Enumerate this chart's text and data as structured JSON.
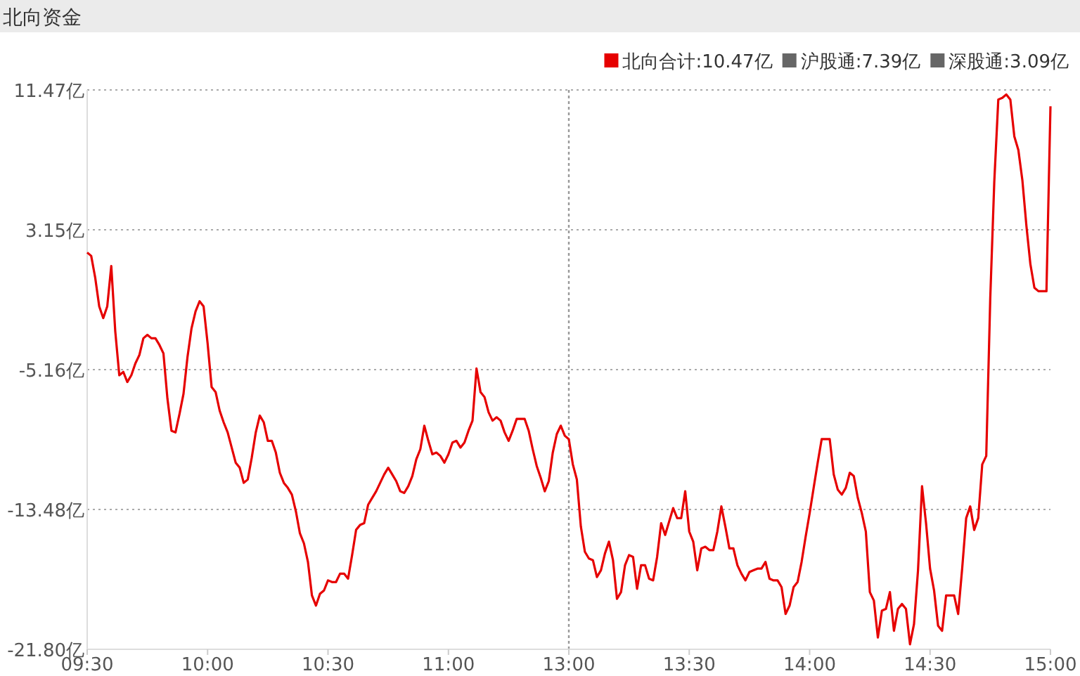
{
  "chart_data": {
    "type": "line",
    "title": "北向资金",
    "categories": [
      "09:30",
      null,
      null,
      null,
      null,
      null,
      null,
      null,
      null,
      null,
      null,
      null,
      null,
      null,
      null,
      null,
      null,
      null,
      null,
      null,
      null,
      null,
      null,
      null,
      null,
      null,
      null,
      null,
      null,
      null,
      "10:00",
      null,
      null,
      null,
      null,
      null,
      null,
      null,
      null,
      null,
      null,
      null,
      null,
      null,
      null,
      null,
      null,
      null,
      null,
      null,
      null,
      null,
      null,
      null,
      null,
      null,
      null,
      null,
      null,
      null,
      "10:30",
      null,
      null,
      null,
      null,
      null,
      null,
      null,
      null,
      null,
      null,
      null,
      null,
      null,
      null,
      null,
      null,
      null,
      null,
      null,
      null,
      null,
      null,
      null,
      null,
      null,
      null,
      null,
      null,
      null,
      "11:00",
      null,
      null,
      null,
      null,
      null,
      null,
      null,
      null,
      null,
      null,
      null,
      null,
      null,
      null,
      null,
      null,
      null,
      null,
      null,
      null,
      null,
      null,
      null,
      null,
      null,
      null,
      null,
      null,
      null,
      "13:00",
      null,
      null,
      null,
      null,
      null,
      null,
      null,
      null,
      null,
      null,
      null,
      null,
      null,
      null,
      null,
      null,
      null,
      null,
      null,
      null,
      null,
      null,
      null,
      null,
      null,
      null,
      null,
      null,
      null,
      "13:30",
      null,
      null,
      null,
      null,
      null,
      null,
      null,
      null,
      null,
      null,
      null,
      null,
      null,
      null,
      null,
      null,
      null,
      null,
      null,
      null,
      null,
      null,
      null,
      null,
      null,
      null,
      null,
      null,
      null,
      "14:00",
      null,
      null,
      null,
      null,
      null,
      null,
      null,
      null,
      null,
      null,
      null,
      null,
      null,
      null,
      null,
      null,
      null,
      null,
      null,
      null,
      null,
      null,
      null,
      null,
      null,
      null,
      null,
      null,
      null,
      "14:30",
      null,
      null,
      null,
      null,
      null,
      null,
      null,
      null,
      null,
      null,
      null,
      null,
      null,
      null,
      null,
      null,
      null,
      null,
      null,
      null,
      null,
      null,
      null,
      null,
      null,
      null,
      null,
      null,
      null,
      "15:00"
    ],
    "ylim": [
      -21.8,
      11.47
    ],
    "yticks": [
      {
        "value": 11.47,
        "label": "11.47亿"
      },
      {
        "value": 3.15,
        "label": "3.15亿"
      },
      {
        "value": -5.16,
        "label": "-5.16亿"
      },
      {
        "value": -13.48,
        "label": "-13.48亿"
      },
      {
        "value": -21.8,
        "label": "-21.80亿"
      }
    ],
    "grid": "y",
    "legend": "top right",
    "ref_lines": [
      {
        "axis": "x",
        "value": "13:00",
        "line_style": "dotted"
      }
    ],
    "series": [
      {
        "name": "北向合计:10.47亿",
        "color": "#e60000",
        "values": [
          1.8,
          1.6,
          0.3,
          -1.4,
          -2.1,
          -1.4,
          1.0,
          -2.9,
          -5.5,
          -5.3,
          -5.9,
          -5.5,
          -4.8,
          -4.3,
          -3.3,
          -3.1,
          -3.3,
          -3.3,
          -3.7,
          -4.2,
          -6.9,
          -8.8,
          -8.9,
          -7.8,
          -6.6,
          -4.4,
          -2.7,
          -1.7,
          -1.1,
          -1.4,
          -3.6,
          -6.2,
          -6.5,
          -7.6,
          -8.3,
          -8.9,
          -9.8,
          -10.7,
          -11.0,
          -11.9,
          -11.7,
          -10.4,
          -8.9,
          -7.9,
          -8.3,
          -9.4,
          -9.4,
          -10.1,
          -11.3,
          -11.9,
          -12.2,
          -12.6,
          -13.6,
          -14.9,
          -15.5,
          -16.6,
          -18.6,
          -19.2,
          -18.5,
          -18.3,
          -17.7,
          -17.8,
          -17.8,
          -17.3,
          -17.3,
          -17.6,
          -16.2,
          -14.7,
          -14.4,
          -14.3,
          -13.2,
          -12.8,
          -12.4,
          -11.9,
          -11.4,
          -11.0,
          -11.4,
          -11.8,
          -12.4,
          -12.5,
          -12.1,
          -11.5,
          -10.5,
          -9.9,
          -8.5,
          -9.4,
          -10.2,
          -10.1,
          -10.3,
          -10.7,
          -10.2,
          -9.5,
          -9.4,
          -9.8,
          -9.5,
          -8.8,
          -8.2,
          -5.1,
          -6.5,
          -6.8,
          -7.7,
          -8.2,
          -8.0,
          -8.2,
          -8.9,
          -9.4,
          -8.8,
          -8.1,
          -8.1,
          -8.1,
          -8.8,
          -9.9,
          -10.9,
          -11.6,
          -12.4,
          -11.8,
          -10.1,
          -9.0,
          -8.5,
          -9.1,
          -9.3,
          -10.8,
          -11.7,
          -14.5,
          -16.0,
          -16.4,
          -16.5,
          -17.5,
          -17.1,
          -16.1,
          -15.4,
          -16.5,
          -18.8,
          -18.4,
          -16.8,
          -16.2,
          -16.3,
          -18.2,
          -16.8,
          -16.8,
          -17.6,
          -17.7,
          -16.3,
          -14.3,
          -15.0,
          -14.2,
          -13.4,
          -14.0,
          -14.0,
          -12.4,
          -14.8,
          -15.4,
          -17.1,
          -15.8,
          -15.7,
          -15.9,
          -15.9,
          -14.8,
          -13.3,
          -14.5,
          -15.8,
          -15.8,
          -16.8,
          -17.3,
          -17.7,
          -17.2,
          -17.1,
          -17.0,
          -17.0,
          -16.6,
          -17.6,
          -17.7,
          -17.7,
          -18.1,
          -19.7,
          -19.2,
          -18.1,
          -17.8,
          -16.6,
          -15.1,
          -13.7,
          -12.2,
          -10.7,
          -9.3,
          -9.3,
          -9.3,
          -11.4,
          -12.3,
          -12.6,
          -12.2,
          -11.3,
          -11.5,
          -12.8,
          -13.7,
          -14.8,
          -18.4,
          -18.9,
          -21.1,
          -19.5,
          -19.4,
          -18.4,
          -20.7,
          -19.4,
          -19.1,
          -19.4,
          -21.5,
          -20.3,
          -17.1,
          -12.1,
          -14.3,
          -17.0,
          -18.3,
          -20.4,
          -20.7,
          -18.6,
          -18.6,
          -18.6,
          -19.7,
          -17.0,
          -14.0,
          -13.3,
          -14.7,
          -14.0,
          -10.8,
          -10.3,
          -0.9,
          6.0,
          10.9,
          11.0,
          11.2,
          10.9,
          8.7,
          7.9,
          6.1,
          3.4,
          1.1,
          -0.3,
          -0.5,
          -0.5,
          -0.5,
          10.5
        ]
      },
      {
        "name": "沪股通:7.39亿",
        "color": "#666666",
        "values": [
          null,
          null,
          null,
          null,
          null,
          null,
          null,
          null,
          null,
          null,
          null,
          null,
          null,
          null,
          null,
          null,
          null,
          null,
          null,
          null,
          null,
          null,
          null,
          null,
          null,
          null,
          null,
          null,
          null,
          null,
          null,
          null,
          null,
          null,
          null,
          null,
          null,
          null,
          null,
          null,
          null,
          null,
          null,
          null,
          null,
          null,
          null,
          null,
          null,
          null,
          null,
          null,
          null,
          null,
          null,
          null,
          null,
          null,
          null,
          null,
          null,
          null,
          null,
          null,
          null,
          null,
          null,
          null,
          null,
          null,
          null,
          null,
          null,
          null,
          null,
          null,
          null,
          null,
          null,
          null,
          null,
          null,
          null,
          null,
          null,
          null,
          null,
          null,
          null,
          null,
          null,
          null,
          null,
          null,
          null,
          null,
          null,
          null,
          null,
          null,
          null,
          null,
          null,
          null,
          null,
          null,
          null,
          null,
          null,
          null,
          null,
          null,
          null,
          null,
          null,
          null,
          null,
          null,
          null,
          null,
          null,
          null,
          null,
          null,
          null,
          null,
          null,
          null,
          null,
          null,
          null,
          null,
          null,
          null,
          null,
          null,
          null,
          null,
          null,
          null,
          null,
          null,
          null,
          null,
          null,
          null,
          null,
          null,
          null,
          null,
          null,
          null,
          null,
          null,
          null,
          null,
          null,
          null,
          null,
          null,
          null,
          null,
          null,
          null,
          null,
          null,
          null,
          null,
          null,
          null,
          null,
          null,
          null,
          null,
          null,
          null,
          null,
          null,
          null,
          null,
          null,
          null,
          null,
          null,
          null,
          null,
          null,
          null,
          null,
          null,
          null,
          null,
          null,
          null,
          null,
          null,
          null,
          null,
          null,
          null,
          null,
          null,
          null,
          null,
          null,
          null,
          null,
          null,
          null,
          null,
          null,
          null,
          null,
          null,
          null,
          null,
          null,
          null,
          null,
          null,
          null,
          null,
          null,
          null,
          null,
          null,
          null,
          null,
          null,
          null,
          null,
          null,
          null,
          null,
          null,
          null,
          null,
          null,
          null,
          null,
          null
        ]
      },
      {
        "name": "深股通:3.09亿",
        "color": "#666666",
        "values": [
          null,
          null,
          null,
          null,
          null,
          null,
          null,
          null,
          null,
          null,
          null,
          null,
          null,
          null,
          null,
          null,
          null,
          null,
          null,
          null,
          null,
          null,
          null,
          null,
          null,
          null,
          null,
          null,
          null,
          null,
          null,
          null,
          null,
          null,
          null,
          null,
          null,
          null,
          null,
          null,
          null,
          null,
          null,
          null,
          null,
          null,
          null,
          null,
          null,
          null,
          null,
          null,
          null,
          null,
          null,
          null,
          null,
          null,
          null,
          null,
          null,
          null,
          null,
          null,
          null,
          null,
          null,
          null,
          null,
          null,
          null,
          null,
          null,
          null,
          null,
          null,
          null,
          null,
          null,
          null,
          null,
          null,
          null,
          null,
          null,
          null,
          null,
          null,
          null,
          null,
          null,
          null,
          null,
          null,
          null,
          null,
          null,
          null,
          null,
          null,
          null,
          null,
          null,
          null,
          null,
          null,
          null,
          null,
          null,
          null,
          null,
          null,
          null,
          null,
          null,
          null,
          null,
          null,
          null,
          null,
          null,
          null,
          null,
          null,
          null,
          null,
          null,
          null,
          null,
          null,
          null,
          null,
          null,
          null,
          null,
          null,
          null,
          null,
          null,
          null,
          null,
          null,
          null,
          null,
          null,
          null,
          null,
          null,
          null,
          null,
          null,
          null,
          null,
          null,
          null,
          null,
          null,
          null,
          null,
          null,
          null,
          null,
          null,
          null,
          null,
          null,
          null,
          null,
          null,
          null,
          null,
          null,
          null,
          null,
          null,
          null,
          null,
          null,
          null,
          null,
          null,
          null,
          null,
          null,
          null,
          null,
          null,
          null,
          null,
          null,
          null,
          null,
          null,
          null,
          null,
          null,
          null,
          null,
          null,
          null,
          null,
          null,
          null,
          null,
          null,
          null,
          null,
          null,
          null,
          null,
          null,
          null,
          null,
          null,
          null,
          null,
          null,
          null,
          null,
          null,
          null,
          null,
          null,
          null,
          null,
          null,
          null,
          null,
          null,
          null,
          null,
          null,
          null,
          null,
          null,
          null,
          null,
          null,
          null,
          null,
          null
        ]
      }
    ]
  }
}
